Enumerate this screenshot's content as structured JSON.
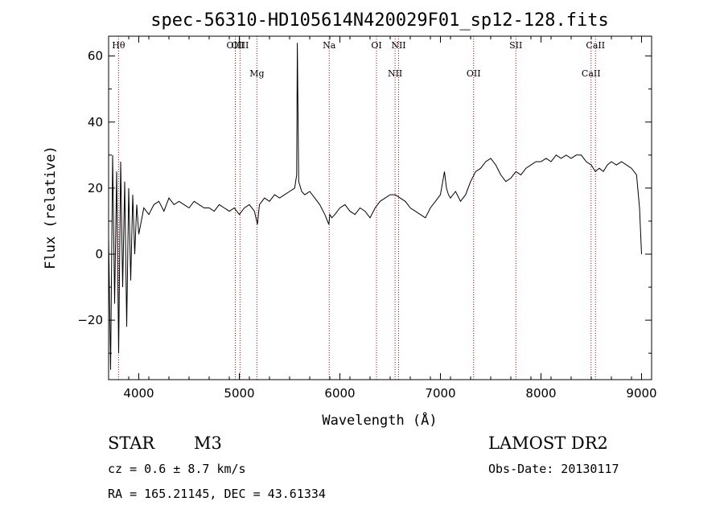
{
  "chart_data": {
    "type": "line",
    "title": "spec-56310-HD105614N420029F01_sp12-128.fits",
    "xlabel": "Wavelength (Å)",
    "ylabel": "Flux (relative)",
    "xlim": [
      3700,
      9100
    ],
    "ylim": [
      -38,
      66
    ],
    "x_ticks": [
      4000,
      5000,
      6000,
      7000,
      8000,
      9000
    ],
    "y_ticks": [
      -20,
      0,
      20,
      40,
      60
    ],
    "grid": false,
    "series": [
      {
        "x": [
          3700,
          3720,
          3740,
          3760,
          3780,
          3800,
          3820,
          3840,
          3860,
          3880,
          3900,
          3920,
          3940,
          3960,
          3980,
          4000,
          4050,
          4100,
          4150,
          4200,
          4250,
          4300,
          4350,
          4400,
          4450,
          4500,
          4550,
          4600,
          4650,
          4700,
          4750,
          4800,
          4850,
          4900,
          4950,
          5000,
          5050,
          5100,
          5150,
          5180,
          5200,
          5250,
          5300,
          5350,
          5400,
          5450,
          5500,
          5550,
          5570,
          5577,
          5590,
          5620,
          5650,
          5700,
          5750,
          5800,
          5850,
          5890,
          5900,
          5920,
          5950,
          6000,
          6050,
          6100,
          6150,
          6200,
          6250,
          6300,
          6350,
          6400,
          6450,
          6500,
          6550,
          6600,
          6650,
          6700,
          6750,
          6800,
          6850,
          6900,
          6950,
          7000,
          7040,
          7060,
          7080,
          7100,
          7150,
          7200,
          7250,
          7300,
          7350,
          7400,
          7450,
          7500,
          7550,
          7600,
          7650,
          7700,
          7750,
          7800,
          7850,
          7900,
          7950,
          8000,
          8050,
          8100,
          8150,
          8200,
          8250,
          8300,
          8350,
          8400,
          8450,
          8500,
          8540,
          8580,
          8620,
          8660,
          8700,
          8750,
          8800,
          8850,
          8900,
          8950,
          8980,
          9000
        ],
        "y": [
          5,
          -35,
          30,
          -15,
          25,
          -30,
          28,
          -10,
          22,
          -22,
          20,
          -8,
          18,
          0,
          15,
          6,
          14,
          12,
          15,
          16,
          13,
          17,
          15,
          16,
          15,
          14,
          16,
          15,
          14,
          14,
          13,
          15,
          14,
          13,
          14,
          12,
          14,
          15,
          13,
          9,
          15,
          17,
          16,
          18,
          17,
          18,
          19,
          20,
          24,
          64,
          22,
          19,
          18,
          19,
          17,
          15,
          12,
          9,
          12,
          11,
          12,
          14,
          15,
          13,
          12,
          14,
          13,
          11,
          14,
          16,
          17,
          18,
          18,
          17,
          16,
          14,
          13,
          12,
          11,
          14,
          16,
          18,
          25,
          20,
          18,
          17,
          19,
          16,
          18,
          22,
          25,
          26,
          28,
          29,
          27,
          24,
          22,
          23,
          25,
          24,
          26,
          27,
          28,
          28,
          29,
          28,
          30,
          29,
          30,
          29,
          30,
          30,
          28,
          27,
          25,
          26,
          25,
          27,
          28,
          27,
          28,
          27,
          26,
          24,
          14,
          0
        ]
      }
    ],
    "line_markers": [
      {
        "name": "Hθ",
        "wavelength": 3799,
        "row": "top"
      },
      {
        "name": "OIII",
        "wavelength": 4960,
        "row": "top"
      },
      {
        "name": "OIII",
        "wavelength": 5007,
        "row": "top"
      },
      {
        "name": "Mg",
        "wavelength": 5175,
        "row": "bottom"
      },
      {
        "name": "Na",
        "wavelength": 5894,
        "row": "top"
      },
      {
        "name": "OI",
        "wavelength": 6364,
        "row": "top"
      },
      {
        "name": "NII",
        "wavelength": 6549,
        "row": "bottom"
      },
      {
        "name": "NII",
        "wavelength": 6584,
        "row": "top"
      },
      {
        "name": "OII",
        "wavelength": 7330,
        "row": "bottom"
      },
      {
        "name": "SII",
        "wavelength": 7750,
        "row": "top"
      },
      {
        "name": "CaII",
        "wavelength": 8498,
        "row": "bottom"
      },
      {
        "name": "CaII",
        "wavelength": 8542,
        "row": "top"
      }
    ]
  },
  "info": {
    "object_class": "STAR",
    "subclass": "M3",
    "survey": "LAMOST DR2",
    "redshift": "cz = 0.6 ± 8.7 km/s",
    "obs_date": "Obs-Date: 20130117",
    "coords": "RA = 165.21145, DEC =  43.61334"
  },
  "colors": {
    "spectrum": "#000000",
    "marker_line": "#cc0000",
    "axes": "#000000"
  }
}
